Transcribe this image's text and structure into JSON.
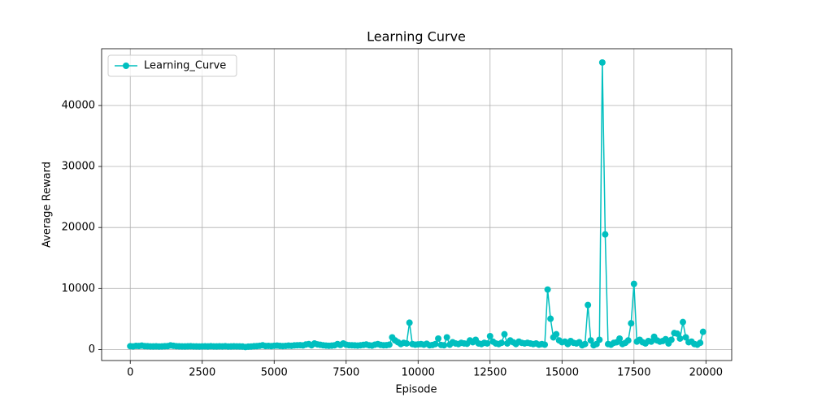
{
  "chart_data": {
    "type": "line",
    "title": "Learning Curve",
    "x_label": "Episode",
    "y_label": "Average Reward",
    "x": [
      0,
      100,
      200,
      300,
      400,
      500,
      600,
      700,
      800,
      900,
      1000,
      1100,
      1200,
      1300,
      1400,
      1500,
      1600,
      1700,
      1800,
      1900,
      2000,
      2100,
      2200,
      2300,
      2400,
      2500,
      2600,
      2700,
      2800,
      2900,
      3000,
      3100,
      3200,
      3300,
      3400,
      3500,
      3600,
      3700,
      3800,
      3900,
      4000,
      4100,
      4200,
      4300,
      4400,
      4500,
      4600,
      4700,
      4800,
      4900,
      5000,
      5100,
      5200,
      5300,
      5400,
      5500,
      5600,
      5700,
      5800,
      5900,
      6000,
      6100,
      6200,
      6300,
      6400,
      6500,
      6600,
      6700,
      6800,
      6900,
      7000,
      7100,
      7200,
      7300,
      7400,
      7500,
      7600,
      7700,
      7800,
      7900,
      8000,
      8100,
      8200,
      8300,
      8400,
      8500,
      8600,
      8700,
      8800,
      8900,
      9000,
      9100,
      9200,
      9300,
      9400,
      9500,
      9600,
      9700,
      9800,
      9900,
      10000,
      10100,
      10200,
      10300,
      10400,
      10500,
      10600,
      10700,
      10800,
      10900,
      11000,
      11100,
      11200,
      11300,
      11400,
      11500,
      11600,
      11700,
      11800,
      11900,
      12000,
      12100,
      12200,
      12300,
      12400,
      12500,
      12600,
      12700,
      12800,
      12900,
      13000,
      13100,
      13200,
      13300,
      13400,
      13500,
      13600,
      13700,
      13800,
      13900,
      14000,
      14100,
      14200,
      14300,
      14400,
      14500,
      14600,
      14700,
      14800,
      14900,
      15000,
      15100,
      15200,
      15300,
      15400,
      15500,
      15600,
      15700,
      15800,
      15900,
      16000,
      16100,
      16200,
      16300,
      16400,
      16500,
      16600,
      16700,
      16800,
      16900,
      17000,
      17100,
      17200,
      17300,
      17400,
      17500,
      17600,
      17700,
      17800,
      17900,
      18000,
      18100,
      18200,
      18300,
      18400,
      18500,
      18600,
      18700,
      18800,
      18900,
      19000,
      19100,
      19200,
      19300,
      19400,
      19500,
      19600,
      19700,
      19800,
      19900
    ],
    "series": [
      {
        "name": "Learning_Curve",
        "color": "#00bfbf",
        "values": [
          550,
          520,
          600,
          580,
          650,
          560,
          540,
          520,
          510,
          530,
          500,
          520,
          540,
          560,
          680,
          610,
          550,
          530,
          520,
          510,
          530,
          540,
          520,
          510,
          500,
          520,
          530,
          510,
          540,
          520,
          510,
          530,
          520,
          540,
          500,
          510,
          530,
          520,
          510,
          490,
          420,
          480,
          500,
          540,
          560,
          620,
          700,
          580,
          600,
          560,
          620,
          650,
          590,
          570,
          600,
          640,
          620,
          680,
          700,
          720,
          680,
          820,
          900,
          700,
          1000,
          850,
          780,
          700,
          650,
          620,
          640,
          700,
          900,
          760,
          1000,
          800,
          720,
          700,
          680,
          650,
          700,
          760,
          820,
          700,
          650,
          800,
          900,
          760,
          700,
          720,
          800,
          2000,
          1500,
          1200,
          900,
          1100,
          1000,
          4400,
          900,
          800,
          850,
          900,
          800,
          950,
          700,
          750,
          900,
          1800,
          750,
          700,
          2000,
          800,
          1200,
          1000,
          900,
          1100,
          1000,
          950,
          1500,
          1200,
          1600,
          1000,
          900,
          1100,
          1000,
          2200,
          1300,
          1000,
          900,
          1100,
          2500,
          1000,
          1500,
          1200,
          900,
          1300,
          1100,
          1000,
          1100,
          1000,
          900,
          1000,
          800,
          900,
          800,
          9830,
          5050,
          2000,
          2500,
          1500,
          1200,
          1300,
          900,
          1400,
          1100,
          1000,
          1200,
          700,
          900,
          7300,
          1500,
          700,
          900,
          1600,
          47040,
          18870,
          900,
          800,
          1100,
          1200,
          1800,
          900,
          1100,
          1500,
          4300,
          10760,
          1300,
          1600,
          1200,
          1000,
          1400,
          1300,
          2100,
          1500,
          1300,
          1400,
          1700,
          1000,
          1600,
          2700,
          2600,
          1800,
          4500,
          2000,
          1200,
          1300,
          900,
          800,
          1100,
          2900
        ]
      }
    ],
    "xlim": [
      -995,
      20895
    ],
    "ylim": [
      -1800,
      49300
    ],
    "xticks": [
      0,
      2500,
      5000,
      7500,
      10000,
      12500,
      15000,
      17500,
      20000
    ],
    "yticks": [
      0,
      10000,
      20000,
      30000,
      40000
    ],
    "grid": true,
    "legend": "upper left"
  }
}
